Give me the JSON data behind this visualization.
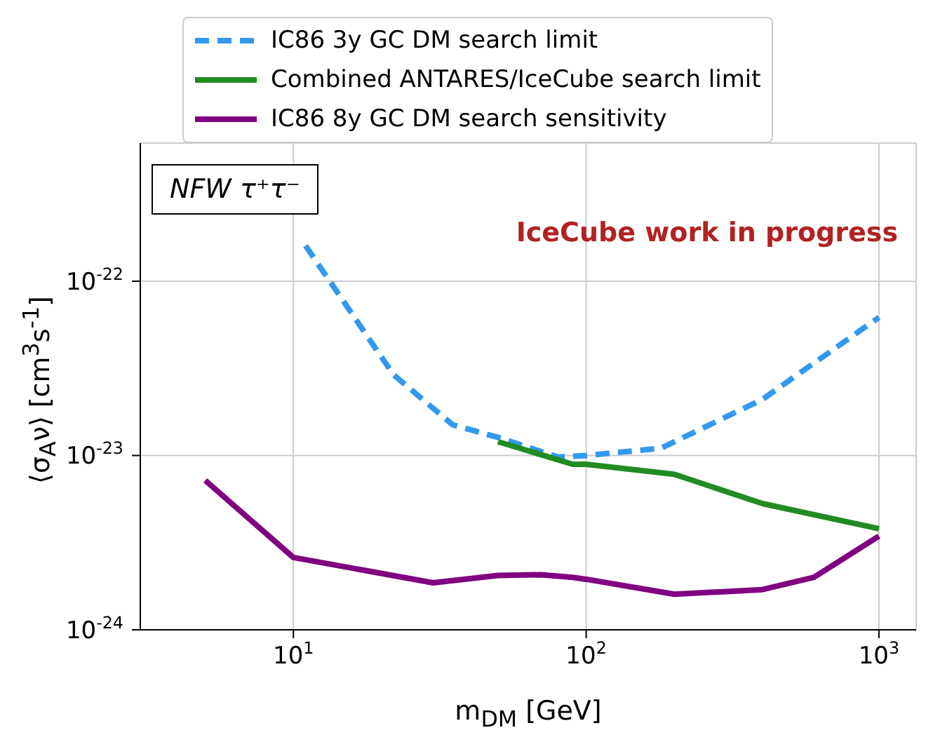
{
  "chart_data": {
    "type": "line",
    "xlabel": "m$_{DM}$ [GeV]",
    "ylabel": "⟨σ$_{A}$ν⟩ [cm$^{3}$s$^{-1}$]",
    "annotations": [
      "NFW τ⁺τ⁻",
      "IceCube work in progress"
    ],
    "log": "xy",
    "xlim": [
      3,
      1340
    ],
    "ylim": [
      1e-24,
      6.2e-22
    ],
    "xticks": [
      {
        "value": 10,
        "label": "10$^{1}$"
      },
      {
        "value": 100,
        "label": "10$^{2}$"
      },
      {
        "value": 1000,
        "label": "10$^{3}$"
      }
    ],
    "yticks": [
      {
        "value": 1e-24,
        "label": "10$^{-24}$"
      },
      {
        "value": 1e-23,
        "label": "10$^{-23}$"
      },
      {
        "value": 1e-22,
        "label": "10$^{-22}$"
      }
    ],
    "grid": true,
    "legend": "top",
    "marker": "none",
    "series": [
      {
        "name": "IC86 3y GC DM search limit",
        "color": "#3399ee",
        "line_style": "dashed",
        "x": [
          11,
          22,
          35,
          50,
          80,
          100,
          180,
          400,
          1000
        ],
        "values": [
          1.6e-22,
          2.9e-23,
          1.5e-23,
          1.27e-23,
          9.8e-24,
          1e-23,
          1.1e-23,
          2.1e-23,
          6.2e-23
        ]
      },
      {
        "name": "Combined ANTARES/IceCube search limit",
        "color": "#228b22",
        "line_style": "solid",
        "x": [
          50,
          90,
          100,
          200,
          400,
          1000
        ],
        "values": [
          1.2e-23,
          8.9e-24,
          8.9e-24,
          7.8e-24,
          5.3e-24,
          3.8e-24
        ]
      },
      {
        "name": "IC86 8y GC DM search sensitivity",
        "color": "#800080",
        "line_style": "solid",
        "x": [
          5,
          10,
          30,
          50,
          70,
          90,
          100,
          200,
          400,
          600,
          1000
        ],
        "values": [
          7.2e-24,
          2.6e-24,
          1.86e-24,
          2.05e-24,
          2.07e-24,
          2e-24,
          1.95e-24,
          1.6e-24,
          1.7e-24,
          2e-24,
          3.45e-24
        ]
      }
    ]
  }
}
